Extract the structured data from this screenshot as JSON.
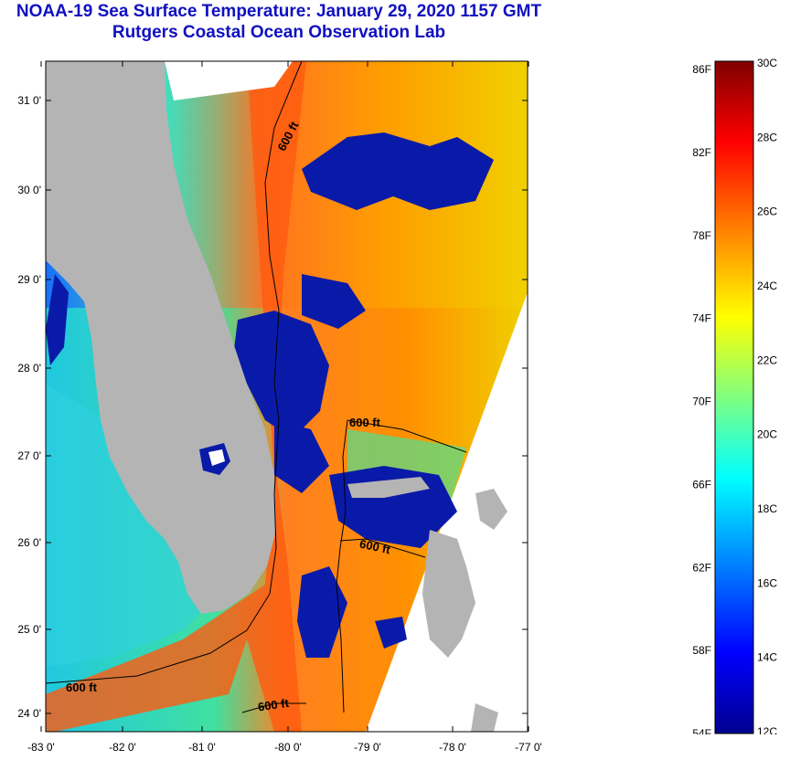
{
  "header": {
    "title": "NOAA-19 Sea Surface Temperature:  January 29, 2020 1157 GMT",
    "subtitle": "Rutgers Coastal Ocean Observation Lab"
  },
  "map": {
    "x_ticks": [
      "-83 0'",
      "-82 0'",
      "-81 0'",
      "-80 0'",
      "-79 0'",
      "-78 0'",
      "-77 0'"
    ],
    "y_ticks": [
      "31 0'",
      "30 0'",
      "29 0'",
      "28 0'",
      "27 0'",
      "26 0'",
      "25 0'",
      "24 0'"
    ],
    "contour_labels": [
      "600 ft",
      "600 ft",
      "600 ft",
      "600 ft",
      "600 ft"
    ],
    "colors": {
      "land": "#b4b4b4",
      "cloud": "#0a1aa8",
      "no_data": "#ffffff"
    }
  },
  "colorbar": {
    "fahrenheit_labels": [
      "86F",
      "82F",
      "78F",
      "74F",
      "70F",
      "66F",
      "62F",
      "58F",
      "54F"
    ],
    "celsius_labels": [
      "30C",
      "28C",
      "26C",
      "24C",
      "22C",
      "20C",
      "18C",
      "16C",
      "14C",
      "12C"
    ],
    "colors": [
      "#00008f",
      "#0000ff",
      "#0080ff",
      "#00ffff",
      "#80ff80",
      "#ffff00",
      "#ff8000",
      "#ff0000",
      "#800000"
    ]
  }
}
